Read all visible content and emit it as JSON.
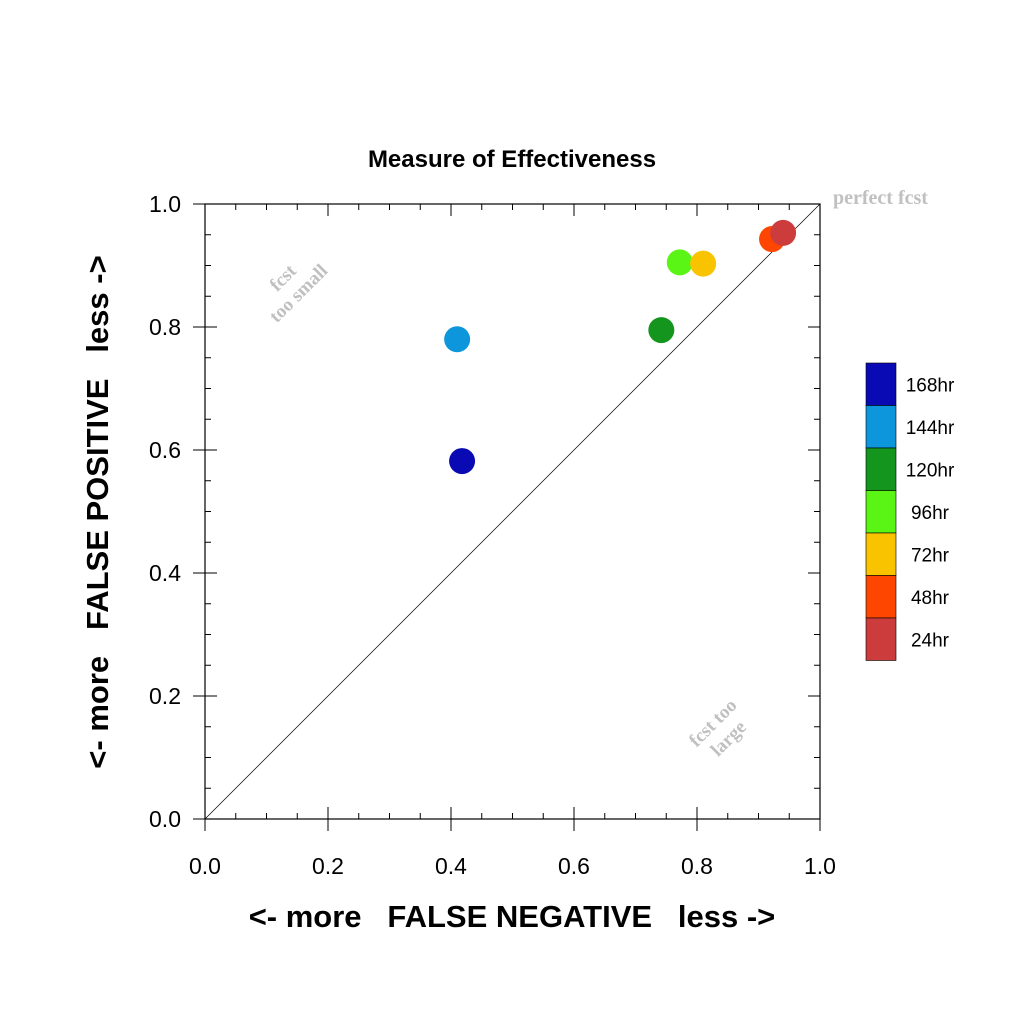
{
  "chart_data": {
    "type": "scatter",
    "title": "Measure of Effectiveness",
    "xlabel": "<- more   FALSE NEGATIVE   less ->",
    "ylabel": "<- more   FALSE POSITIVE   less ->",
    "xlim": [
      0.0,
      1.0
    ],
    "ylim": [
      0.0,
      1.0
    ],
    "xticks": [
      "0.0",
      "0.2",
      "0.4",
      "0.6",
      "0.8",
      "1.0"
    ],
    "yticks": [
      "0.0",
      "0.2",
      "0.4",
      "0.6",
      "0.8",
      "1.0"
    ],
    "grid": false,
    "legend_position": "right",
    "annotations": {
      "perfect": "perfect fcst",
      "too_small": [
        "fcst",
        "too small"
      ],
      "too_large": [
        "fcst too",
        "large"
      ]
    },
    "series": [
      {
        "name": "168hr",
        "color": "#0a0ab4",
        "x": [
          0.418
        ],
        "y": [
          0.582
        ]
      },
      {
        "name": "144hr",
        "color": "#0d96dc",
        "x": [
          0.41
        ],
        "y": [
          0.78
        ]
      },
      {
        "name": "120hr",
        "color": "#14961e",
        "x": [
          0.742
        ],
        "y": [
          0.795
        ]
      },
      {
        "name": "96hr",
        "color": "#5af514",
        "x": [
          0.772
        ],
        "y": [
          0.905
        ]
      },
      {
        "name": "72hr",
        "color": "#fac300",
        "x": [
          0.81
        ],
        "y": [
          0.903
        ]
      },
      {
        "name": "48hr",
        "color": "#ff4600",
        "x": [
          0.922
        ],
        "y": [
          0.943
        ]
      },
      {
        "name": "24hr",
        "color": "#cd3c3c",
        "x": [
          0.94
        ],
        "y": [
          0.953
        ]
      }
    ]
  }
}
